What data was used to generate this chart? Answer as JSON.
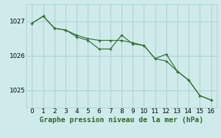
{
  "background_color": "#ceeaea",
  "grid_color": "#aacfcf",
  "line_color": "#2d6a2d",
  "xlabel": "Graphe pression niveau de la mer (hPa)",
  "xlabel_fontsize": 7.5,
  "xlim": [
    -0.5,
    16.5
  ],
  "ylim": [
    1024.5,
    1027.5
  ],
  "yticks": [
    1025,
    1026,
    1027
  ],
  "xticks": [
    0,
    1,
    2,
    3,
    4,
    5,
    6,
    7,
    8,
    9,
    10,
    11,
    12,
    13,
    14,
    15,
    16
  ],
  "series1_x": [
    0,
    1,
    2,
    3,
    4,
    5,
    6,
    7,
    8,
    9,
    10,
    11,
    12,
    13,
    14,
    15,
    16
  ],
  "series1_y": [
    1026.95,
    1027.15,
    1026.8,
    1026.75,
    1026.55,
    1026.45,
    1026.2,
    1026.2,
    1026.6,
    1026.35,
    1026.3,
    1025.92,
    1026.05,
    1025.55,
    1025.3,
    1024.85,
    1024.72
  ],
  "series2_x": [
    0,
    1,
    2,
    3,
    4,
    5,
    6,
    7,
    8,
    9,
    10,
    11,
    12,
    13,
    14,
    15,
    16
  ],
  "series2_y": [
    1026.95,
    1027.15,
    1026.8,
    1026.75,
    1026.6,
    1026.5,
    1026.45,
    1026.45,
    1026.45,
    1026.38,
    1026.3,
    1025.92,
    1025.85,
    1025.55,
    1025.3,
    1024.85,
    1024.72
  ]
}
